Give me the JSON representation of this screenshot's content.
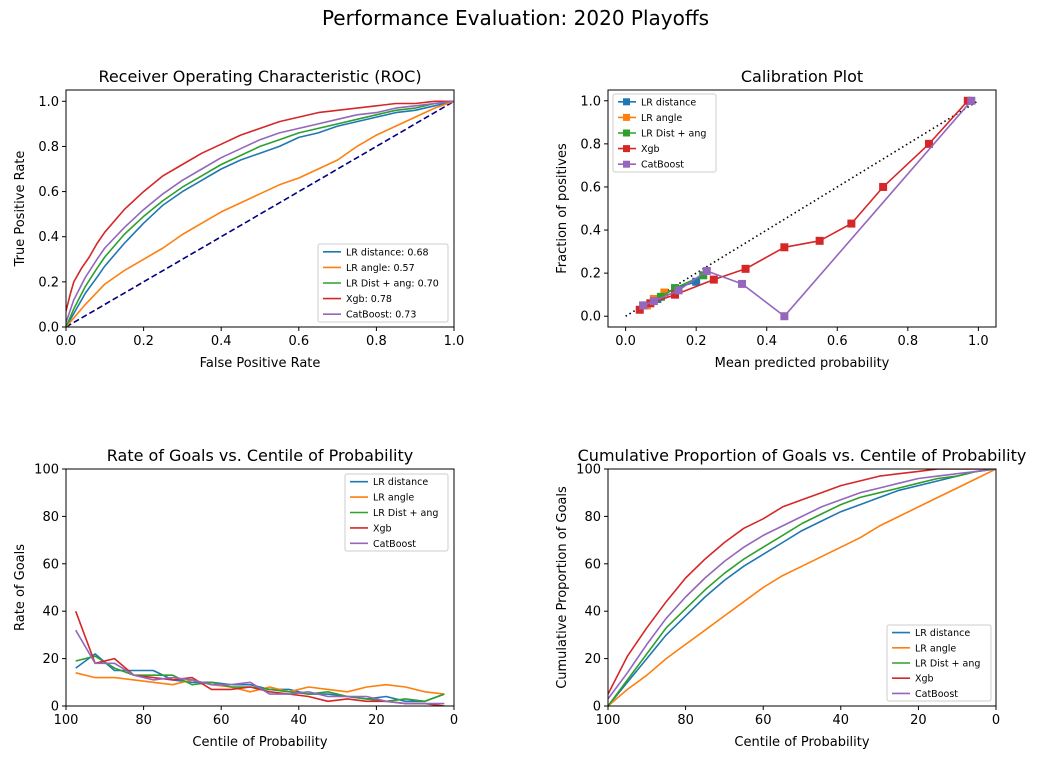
{
  "suptitle": "Performance Evaluation: 2020 Playoffs",
  "colors": {
    "blue": "#1f77b4",
    "orange": "#ff7f0e",
    "green": "#2ca02c",
    "red": "#d62728",
    "purple": "#9467bd",
    "navy": "#000080"
  },
  "chart_data": [
    {
      "type": "line",
      "title": "Receiver Operating Characteristic (ROC)",
      "xlabel": "False Positive Rate",
      "ylabel": "True Positive Rate",
      "xlim": [
        0,
        1
      ],
      "ylim": [
        0,
        1.05
      ],
      "xticks": [
        "0.0",
        "0.2",
        "0.4",
        "0.6",
        "0.8",
        "1.0"
      ],
      "yticks": [
        "0.0",
        "0.2",
        "0.4",
        "0.6",
        "0.8",
        "1.0"
      ],
      "legend": "lower-right",
      "reference_line": {
        "x": [
          0,
          1
        ],
        "y": [
          0,
          1
        ],
        "style": "dashed",
        "color": "#000080"
      },
      "series": [
        {
          "name": "LR distance: 0.68",
          "color": "#1f77b4",
          "x": [
            0,
            0.02,
            0.05,
            0.08,
            0.1,
            0.15,
            0.2,
            0.25,
            0.3,
            0.35,
            0.4,
            0.45,
            0.5,
            0.55,
            0.6,
            0.65,
            0.7,
            0.75,
            0.8,
            0.85,
            0.9,
            0.95,
            1
          ],
          "y": [
            0,
            0.06,
            0.15,
            0.22,
            0.27,
            0.37,
            0.46,
            0.54,
            0.6,
            0.65,
            0.7,
            0.74,
            0.77,
            0.8,
            0.84,
            0.86,
            0.89,
            0.91,
            0.93,
            0.95,
            0.96,
            0.98,
            1
          ]
        },
        {
          "name": "LR angle: 0.57",
          "color": "#ff7f0e",
          "x": [
            0,
            0.05,
            0.1,
            0.15,
            0.2,
            0.25,
            0.3,
            0.35,
            0.4,
            0.45,
            0.5,
            0.55,
            0.6,
            0.65,
            0.7,
            0.75,
            0.8,
            0.85,
            0.9,
            0.95,
            1
          ],
          "y": [
            0,
            0.1,
            0.19,
            0.25,
            0.3,
            0.35,
            0.41,
            0.46,
            0.51,
            0.55,
            0.59,
            0.63,
            0.66,
            0.7,
            0.74,
            0.8,
            0.85,
            0.89,
            0.93,
            0.97,
            1
          ]
        },
        {
          "name": "LR Dist + ang: 0.70",
          "color": "#2ca02c",
          "x": [
            0,
            0.02,
            0.05,
            0.08,
            0.1,
            0.15,
            0.2,
            0.25,
            0.3,
            0.35,
            0.4,
            0.45,
            0.5,
            0.55,
            0.6,
            0.65,
            0.7,
            0.75,
            0.8,
            0.85,
            0.9,
            0.95,
            1
          ],
          "y": [
            0,
            0.08,
            0.18,
            0.26,
            0.31,
            0.41,
            0.49,
            0.56,
            0.62,
            0.67,
            0.72,
            0.76,
            0.8,
            0.83,
            0.86,
            0.88,
            0.9,
            0.92,
            0.94,
            0.96,
            0.97,
            0.99,
            1
          ]
        },
        {
          "name": "Xgb: 0.78",
          "color": "#d62728",
          "x": [
            0,
            0.01,
            0.02,
            0.04,
            0.06,
            0.08,
            0.1,
            0.15,
            0.2,
            0.25,
            0.3,
            0.35,
            0.4,
            0.45,
            0.5,
            0.55,
            0.6,
            0.65,
            0.7,
            0.75,
            0.8,
            0.85,
            0.9,
            0.95,
            1
          ],
          "y": [
            0.07,
            0.14,
            0.2,
            0.26,
            0.31,
            0.37,
            0.42,
            0.52,
            0.6,
            0.67,
            0.72,
            0.77,
            0.81,
            0.85,
            0.88,
            0.91,
            0.93,
            0.95,
            0.96,
            0.97,
            0.98,
            0.99,
            0.99,
            1,
            1
          ]
        },
        {
          "name": "CatBoost: 0.73",
          "color": "#9467bd",
          "x": [
            0,
            0.02,
            0.05,
            0.08,
            0.1,
            0.15,
            0.2,
            0.25,
            0.3,
            0.35,
            0.4,
            0.45,
            0.5,
            0.55,
            0.6,
            0.65,
            0.7,
            0.75,
            0.8,
            0.85,
            0.9,
            0.95,
            1
          ],
          "y": [
            0.02,
            0.12,
            0.22,
            0.3,
            0.35,
            0.44,
            0.52,
            0.59,
            0.65,
            0.7,
            0.75,
            0.79,
            0.83,
            0.86,
            0.88,
            0.9,
            0.92,
            0.94,
            0.95,
            0.97,
            0.98,
            0.99,
            1
          ]
        }
      ]
    },
    {
      "type": "line",
      "title": "Calibration Plot",
      "xlabel": "Mean predicted probability",
      "ylabel": "Fraction of positives",
      "xlim": [
        -0.05,
        1.05
      ],
      "ylim": [
        -0.05,
        1.05
      ],
      "xticks": [
        "0.0",
        "0.2",
        "0.4",
        "0.6",
        "0.8",
        "1.0"
      ],
      "yticks": [
        "0.0",
        "0.2",
        "0.4",
        "0.6",
        "0.8",
        "1.0"
      ],
      "legend": "upper-left",
      "reference_line": {
        "x": [
          0,
          1
        ],
        "y": [
          0,
          1
        ],
        "style": "dotted",
        "color": "#000000"
      },
      "series": [
        {
          "name": "LR distance",
          "color": "#1f77b4",
          "marker": "square",
          "x": [
            0.05,
            0.09,
            0.14,
            0.2
          ],
          "y": [
            0.05,
            0.08,
            0.13,
            0.16
          ]
        },
        {
          "name": "LR angle",
          "color": "#ff7f0e",
          "marker": "square",
          "x": [
            0.06,
            0.08,
            0.11
          ],
          "y": [
            0.05,
            0.08,
            0.11
          ]
        },
        {
          "name": "LR Dist + ang",
          "color": "#2ca02c",
          "marker": "square",
          "x": [
            0.05,
            0.1,
            0.14,
            0.22
          ],
          "y": [
            0.05,
            0.09,
            0.13,
            0.19
          ]
        },
        {
          "name": "Xgb",
          "color": "#d62728",
          "marker": "square",
          "x": [
            0.04,
            0.07,
            0.14,
            0.25,
            0.34,
            0.45,
            0.55,
            0.64,
            0.73,
            0.86,
            0.97
          ],
          "y": [
            0.03,
            0.06,
            0.1,
            0.17,
            0.22,
            0.32,
            0.35,
            0.43,
            0.6,
            0.8,
            1.0
          ]
        },
        {
          "name": "CatBoost",
          "color": "#9467bd",
          "marker": "square",
          "x": [
            0.05,
            0.08,
            0.15,
            0.23,
            0.33,
            0.45,
            0.98
          ],
          "y": [
            0.05,
            0.07,
            0.12,
            0.21,
            0.15,
            0.0,
            1.0
          ]
        }
      ]
    },
    {
      "type": "line",
      "title": "Rate of Goals vs. Centile of Probability",
      "xlabel": "Centile of Probability",
      "ylabel": "Rate of Goals",
      "xlim": [
        100,
        0
      ],
      "ylim": [
        0,
        100
      ],
      "xticks": [
        "100",
        "80",
        "60",
        "40",
        "20",
        "0"
      ],
      "yticks": [
        "0",
        "20",
        "40",
        "60",
        "80",
        "100"
      ],
      "legend": "upper-right",
      "series": [
        {
          "name": "LR distance",
          "color": "#1f77b4",
          "x": [
            97.5,
            92.5,
            87.5,
            82.5,
            77.5,
            72.5,
            67.5,
            62.5,
            57.5,
            52.5,
            47.5,
            42.5,
            37.5,
            32.5,
            27.5,
            22.5,
            17.5,
            12.5,
            7.5,
            2.5
          ],
          "y": [
            16,
            22,
            15,
            15,
            15,
            11,
            10,
            10,
            9,
            9,
            7,
            7,
            5,
            5,
            4,
            3,
            4,
            2,
            2,
            5
          ]
        },
        {
          "name": "LR angle",
          "color": "#ff7f0e",
          "x": [
            97.5,
            92.5,
            87.5,
            82.5,
            77.5,
            72.5,
            67.5,
            62.5,
            57.5,
            52.5,
            47.5,
            42.5,
            37.5,
            32.5,
            27.5,
            22.5,
            17.5,
            12.5,
            7.5,
            2.5
          ],
          "y": [
            14,
            12,
            12,
            11,
            10,
            9,
            11,
            9,
            8,
            6,
            8,
            6,
            8,
            7,
            6,
            8,
            9,
            8,
            6,
            5
          ]
        },
        {
          "name": "LR Dist + ang",
          "color": "#2ca02c",
          "x": [
            97.5,
            92.5,
            87.5,
            82.5,
            77.5,
            72.5,
            67.5,
            62.5,
            57.5,
            52.5,
            47.5,
            42.5,
            37.5,
            32.5,
            27.5,
            22.5,
            17.5,
            12.5,
            7.5,
            2.5
          ],
          "y": [
            19,
            21,
            16,
            13,
            13,
            13,
            9,
            10,
            8,
            8,
            7,
            6,
            5,
            6,
            4,
            3,
            2,
            3,
            2,
            5
          ]
        },
        {
          "name": "Xgb",
          "color": "#d62728",
          "x": [
            97.5,
            92.5,
            87.5,
            82.5,
            77.5,
            72.5,
            67.5,
            62.5,
            57.5,
            52.5,
            47.5,
            42.5,
            37.5,
            32.5,
            27.5,
            22.5,
            17.5,
            12.5,
            7.5,
            2.5
          ],
          "y": [
            40,
            18,
            20,
            13,
            12,
            11,
            12,
            7,
            7,
            8,
            6,
            5,
            4,
            2,
            3,
            2,
            2,
            1,
            1,
            0
          ]
        },
        {
          "name": "CatBoost",
          "color": "#9467bd",
          "x": [
            97.5,
            92.5,
            87.5,
            82.5,
            77.5,
            72.5,
            67.5,
            62.5,
            57.5,
            52.5,
            47.5,
            42.5,
            37.5,
            32.5,
            27.5,
            22.5,
            17.5,
            12.5,
            7.5,
            2.5
          ],
          "y": [
            32,
            18,
            18,
            13,
            11,
            12,
            11,
            9,
            9,
            10,
            5,
            5,
            6,
            4,
            4,
            4,
            2,
            1,
            1,
            1
          ]
        }
      ]
    },
    {
      "type": "line",
      "title": "Cumulative Proportion of Goals vs. Centile of Probability",
      "xlabel": "Centile of Probability",
      "ylabel": "Cumulative Proportion of Goals",
      "xlim": [
        100,
        0
      ],
      "ylim": [
        0,
        100
      ],
      "xticks": [
        "100",
        "80",
        "60",
        "40",
        "20",
        "0"
      ],
      "yticks": [
        "0",
        "20",
        "40",
        "60",
        "80",
        "100"
      ],
      "legend": "lower-right",
      "series": [
        {
          "name": "LR distance",
          "color": "#1f77b4",
          "x": [
            100,
            95,
            90,
            85,
            80,
            75,
            70,
            65,
            60,
            55,
            50,
            45,
            40,
            35,
            30,
            25,
            20,
            15,
            10,
            5,
            0
          ],
          "y": [
            0,
            10,
            20,
            30,
            38,
            46,
            53,
            59,
            64,
            69,
            74,
            78,
            82,
            85,
            88,
            91,
            93,
            95,
            97,
            99,
            100
          ]
        },
        {
          "name": "LR angle",
          "color": "#ff7f0e",
          "x": [
            100,
            95,
            90,
            85,
            80,
            75,
            70,
            65,
            60,
            55,
            50,
            45,
            40,
            35,
            30,
            25,
            20,
            15,
            10,
            5,
            0
          ],
          "y": [
            0,
            7,
            13,
            20,
            26,
            32,
            38,
            44,
            50,
            55,
            59,
            63,
            67,
            71,
            76,
            80,
            84,
            88,
            92,
            96,
            100
          ]
        },
        {
          "name": "LR Dist + ang",
          "color": "#2ca02c",
          "x": [
            100,
            95,
            90,
            85,
            80,
            75,
            70,
            65,
            60,
            55,
            50,
            45,
            40,
            35,
            30,
            25,
            20,
            15,
            10,
            5,
            0
          ],
          "y": [
            0,
            11,
            22,
            33,
            41,
            49,
            56,
            62,
            67,
            72,
            77,
            81,
            85,
            88,
            90,
            92,
            94,
            96,
            97,
            99,
            100
          ]
        },
        {
          "name": "Xgb",
          "color": "#d62728",
          "x": [
            100,
            95,
            90,
            85,
            80,
            75,
            70,
            65,
            60,
            55,
            50,
            45,
            40,
            35,
            30,
            25,
            20,
            15,
            10,
            5,
            0
          ],
          "y": [
            5,
            21,
            33,
            44,
            54,
            62,
            69,
            75,
            79,
            84,
            87,
            90,
            93,
            95,
            97,
            98,
            99,
            100,
            100,
            100,
            100
          ]
        },
        {
          "name": "CatBoost",
          "color": "#9467bd",
          "x": [
            100,
            95,
            90,
            85,
            80,
            75,
            70,
            65,
            60,
            55,
            50,
            45,
            40,
            35,
            30,
            25,
            20,
            15,
            10,
            5,
            0
          ],
          "y": [
            3,
            14,
            26,
            37,
            46,
            54,
            61,
            67,
            72,
            76,
            80,
            84,
            87,
            90,
            92,
            94,
            96,
            97,
            98,
            99,
            100
          ]
        }
      ]
    }
  ]
}
